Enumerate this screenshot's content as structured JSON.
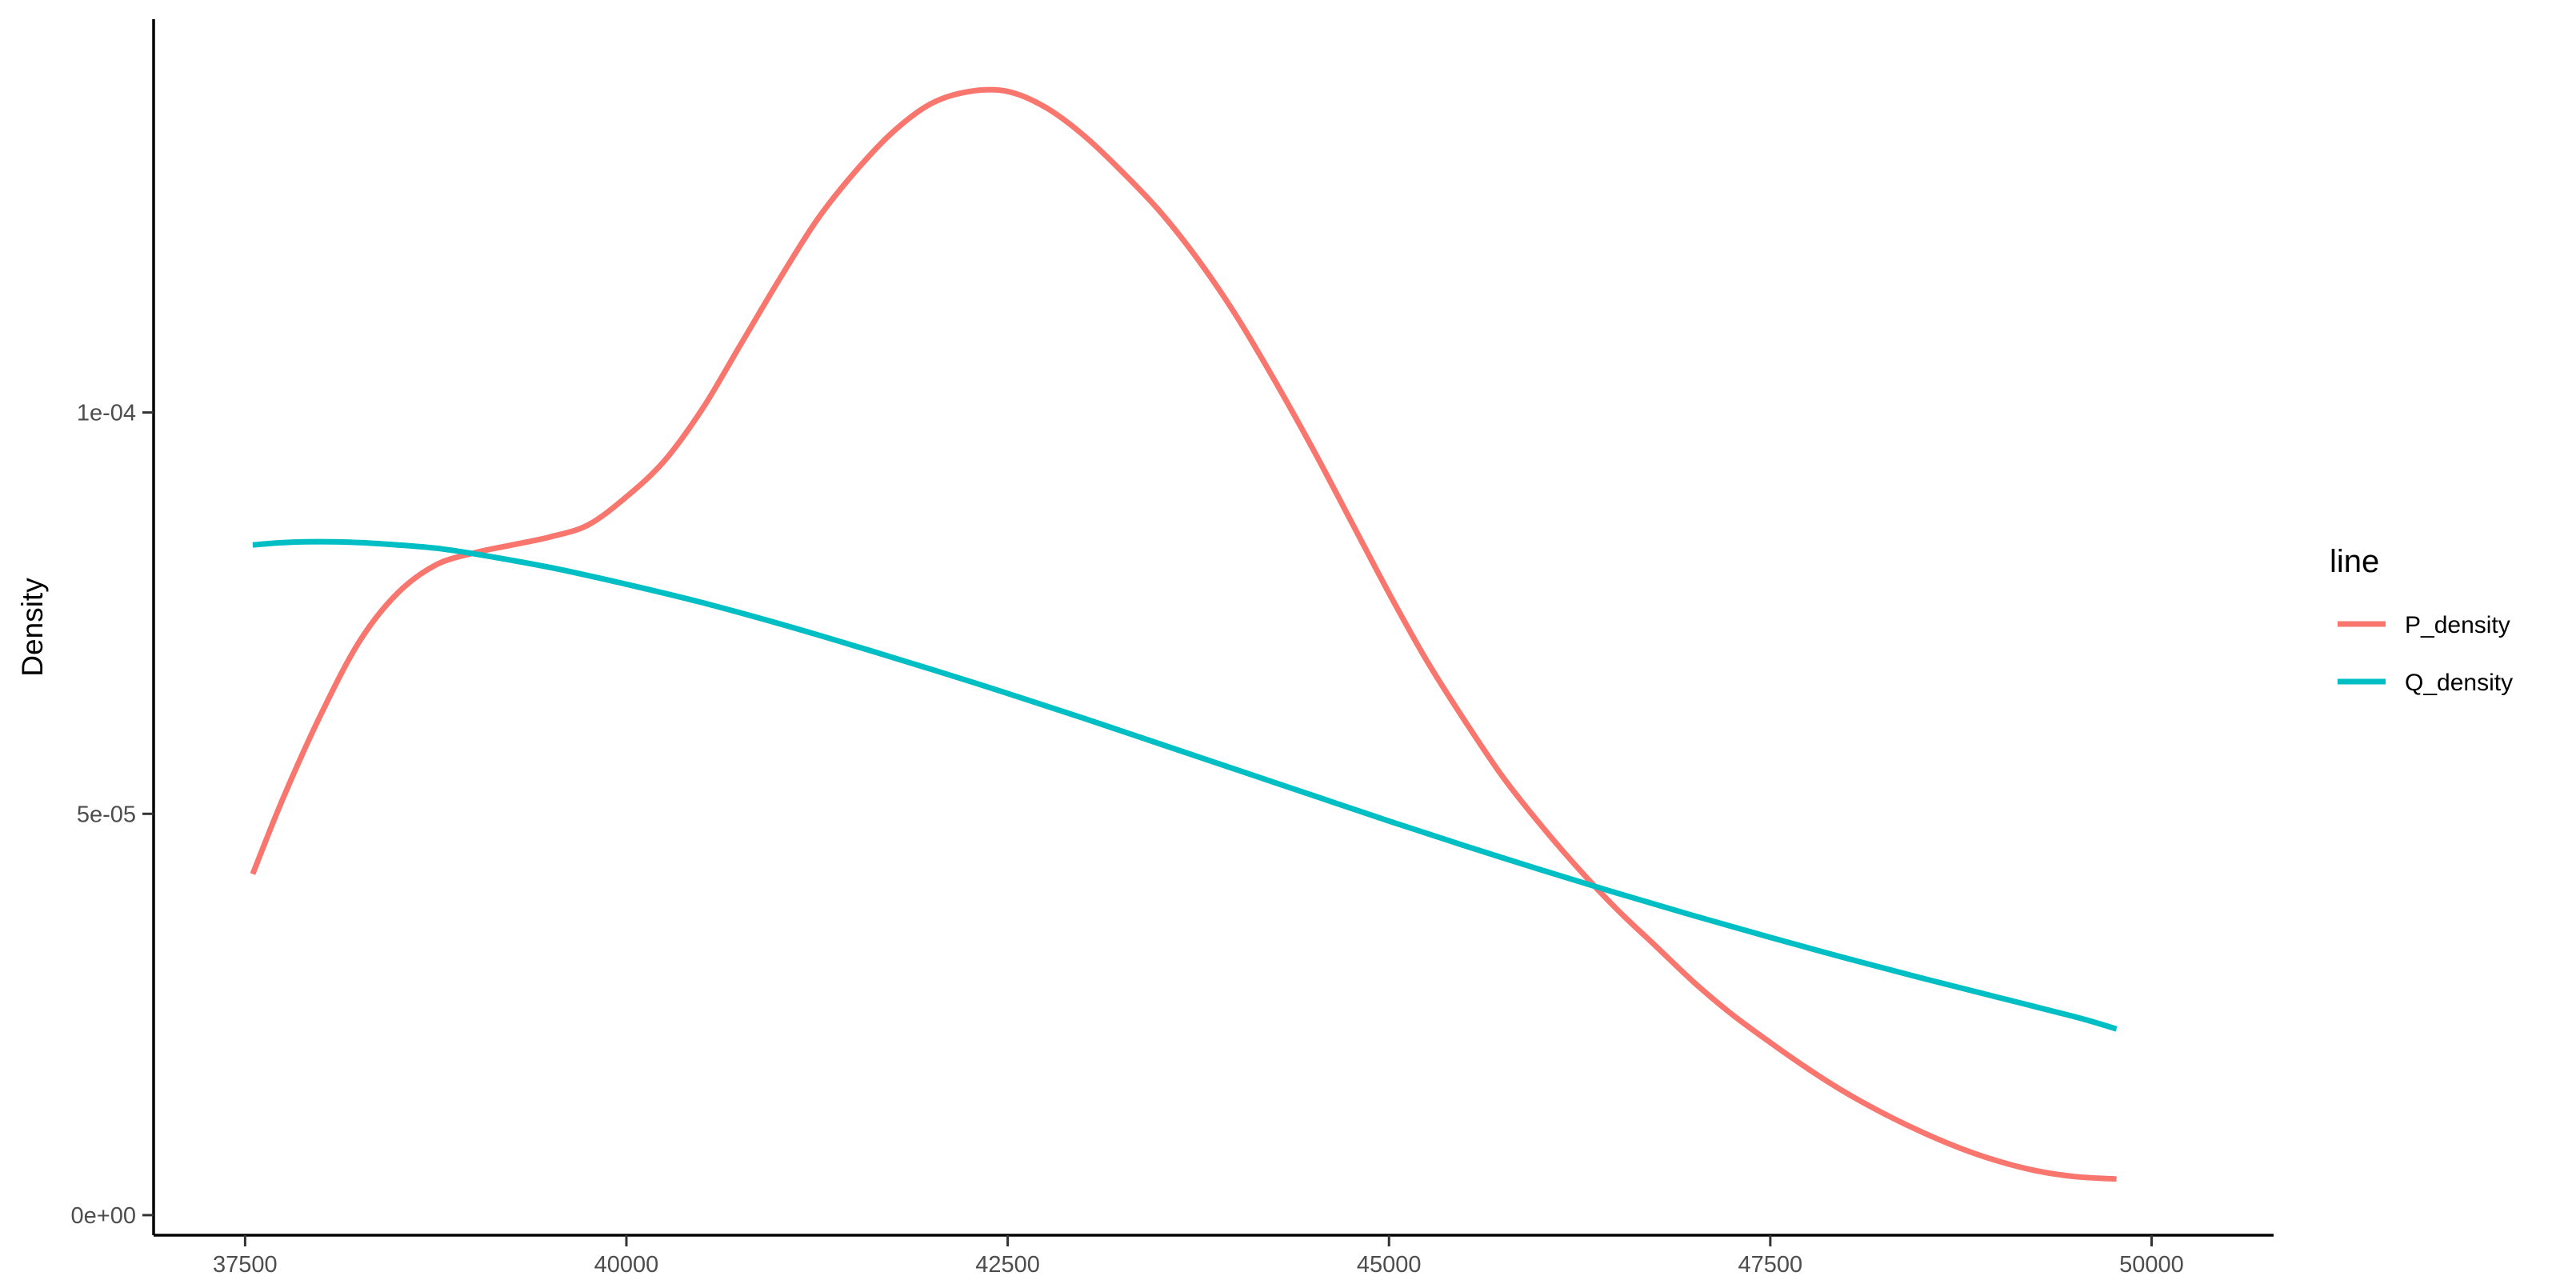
{
  "chart_data": {
    "type": "line",
    "title": "",
    "xlabel": "",
    "ylabel": "Density",
    "xlim": [
      36900,
      50800
    ],
    "ylim": [
      -2.5e-06,
      0.000149
    ],
    "x_ticks": [
      37500,
      40000,
      42500,
      45000,
      47500,
      50000
    ],
    "x_tick_labels": [
      "37500",
      "40000",
      "42500",
      "45000",
      "47500",
      "50000"
    ],
    "y_ticks": [
      0,
      5e-05,
      0.0001
    ],
    "y_tick_labels": [
      "0e+00",
      "5e-05",
      "1e-04"
    ],
    "grid": false,
    "legend": {
      "title": "line",
      "position": "right"
    },
    "series": [
      {
        "name": "P_density",
        "color": "#F8766D",
        "x": [
          37550,
          37750,
          38000,
          38250,
          38500,
          38750,
          39000,
          39250,
          39500,
          39750,
          40000,
          40250,
          40500,
          40750,
          41000,
          41250,
          41500,
          41750,
          42000,
          42250,
          42500,
          42750,
          43000,
          43250,
          43500,
          43750,
          44000,
          44250,
          44500,
          44750,
          45000,
          45250,
          45500,
          45750,
          46000,
          46250,
          46500,
          46750,
          47000,
          47250,
          47500,
          47750,
          48000,
          48250,
          48500,
          48750,
          49000,
          49250,
          49500,
          49770
        ],
        "y": [
          4.25e-05,
          5.2e-05,
          6.25e-05,
          7.15e-05,
          7.75e-05,
          8.1e-05,
          8.25e-05,
          8.35e-05,
          8.45e-05,
          8.6e-05,
          8.95e-05,
          9.4e-05,
          0.0001005,
          0.0001085,
          0.0001165,
          0.000124,
          0.00013,
          0.000135,
          0.0001385,
          0.00014,
          0.00014,
          0.000138,
          0.0001345,
          0.00013,
          0.000125,
          0.000119,
          0.000112,
          0.000104,
          9.55e-05,
          8.65e-05,
          7.75e-05,
          6.9e-05,
          6.15e-05,
          5.45e-05,
          4.85e-05,
          4.3e-05,
          3.8e-05,
          3.35e-05,
          2.9e-05,
          2.5e-05,
          2.15e-05,
          1.82e-05,
          1.52e-05,
          1.26e-05,
          1.03e-05,
          8.3e-06,
          6.7e-06,
          5.5e-06,
          4.8e-06,
          4.5e-06
        ]
      },
      {
        "name": "Q_density",
        "color": "#00BFC4",
        "x": [
          37550,
          37750,
          38000,
          38250,
          38500,
          38750,
          39000,
          39500,
          40000,
          40500,
          41000,
          41500,
          42000,
          42500,
          43000,
          43500,
          44000,
          44500,
          45000,
          45500,
          46000,
          46500,
          47000,
          47500,
          48000,
          48500,
          49000,
          49500,
          49770
        ],
        "y": [
          8.35e-05,
          8.38e-05,
          8.39e-05,
          8.38e-05,
          8.35e-05,
          8.31e-05,
          8.24e-05,
          8.07e-05,
          7.86e-05,
          7.63e-05,
          7.37e-05,
          7.09e-05,
          6.8e-05,
          6.5e-05,
          6.19e-05,
          5.87e-05,
          5.55e-05,
          5.23e-05,
          4.91e-05,
          4.6e-05,
          4.3e-05,
          4.01e-05,
          3.73e-05,
          3.46e-05,
          3.2e-05,
          2.95e-05,
          2.71e-05,
          2.47e-05,
          2.32e-05
        ]
      }
    ]
  }
}
